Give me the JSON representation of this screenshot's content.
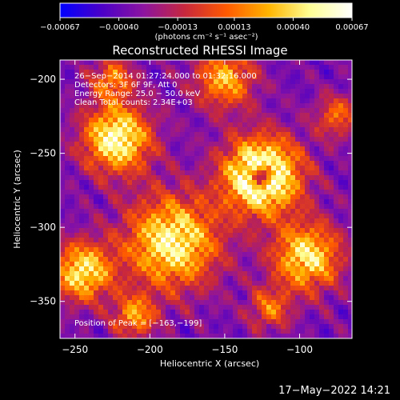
{
  "chart_data": {
    "type": "heatmap",
    "title": "Reconstructed RHESSI Image",
    "xlabel": "Heliocentric X (arcsec)",
    "ylabel": "Heliocentric Y (arcsec)",
    "xlim": [
      -260,
      -65
    ],
    "ylim": [
      -375,
      -187
    ],
    "x_ticks": [
      -250,
      -200,
      -150,
      -100
    ],
    "x_tick_labels": [
      "−250",
      "−200",
      "−150",
      "−100"
    ],
    "y_ticks": [
      -200,
      -250,
      -300,
      -350
    ],
    "y_tick_labels": [
      "−200",
      "−250",
      "−300",
      "−350"
    ],
    "colorbar": {
      "min": -0.00067,
      "max": 0.00067,
      "ticks": [
        -0.00067,
        -0.0004,
        -0.00013,
        0.00013,
        0.0004,
        0.00067
      ],
      "tick_labels": [
        "−0.00067",
        "−0.00040",
        "−0.00013",
        "0.00013",
        "0.00040",
        "0.00067"
      ],
      "unit_label": "(photons cm⁻² s⁻¹ asec⁻²)",
      "colormap": [
        "#0000ff",
        "#4b00c8",
        "#8c14a0",
        "#c8283c",
        "#ff5a00",
        "#ffb400",
        "#ffff96",
        "#ffffff"
      ]
    },
    "annotations": [
      "26−Sep−2014 01:27:24.000 to 01:32:16.000",
      "Detectors: 3F 6F 9F, Att 0",
      "Energy Range: 25.0 − 50.0 keV",
      "Clean     Total counts: 2.34E+03"
    ],
    "peak_label": "Position of Peak = [−163,−199]",
    "sources": [
      {
        "x": -125,
        "y": -265,
        "r": 18,
        "amp": 1.0,
        "ring": true
      },
      {
        "x": -222,
        "y": -240,
        "r": 16,
        "amp": 0.8
      },
      {
        "x": -185,
        "y": -310,
        "r": 22,
        "amp": 0.75
      },
      {
        "x": -245,
        "y": -330,
        "r": 14,
        "amp": 0.7
      },
      {
        "x": -95,
        "y": -320,
        "r": 16,
        "amp": 0.7
      },
      {
        "x": -150,
        "y": -200,
        "r": 14,
        "amp": 0.55
      },
      {
        "x": -225,
        "y": -200,
        "r": 10,
        "amp": 0.45
      },
      {
        "x": -210,
        "y": -360,
        "r": 10,
        "amp": 0.5
      },
      {
        "x": -120,
        "y": -355,
        "r": 10,
        "amp": 0.4
      },
      {
        "x": -75,
        "y": -225,
        "r": 10,
        "amp": 0.4
      }
    ]
  },
  "timestamp": "17−May−2022 14:21"
}
